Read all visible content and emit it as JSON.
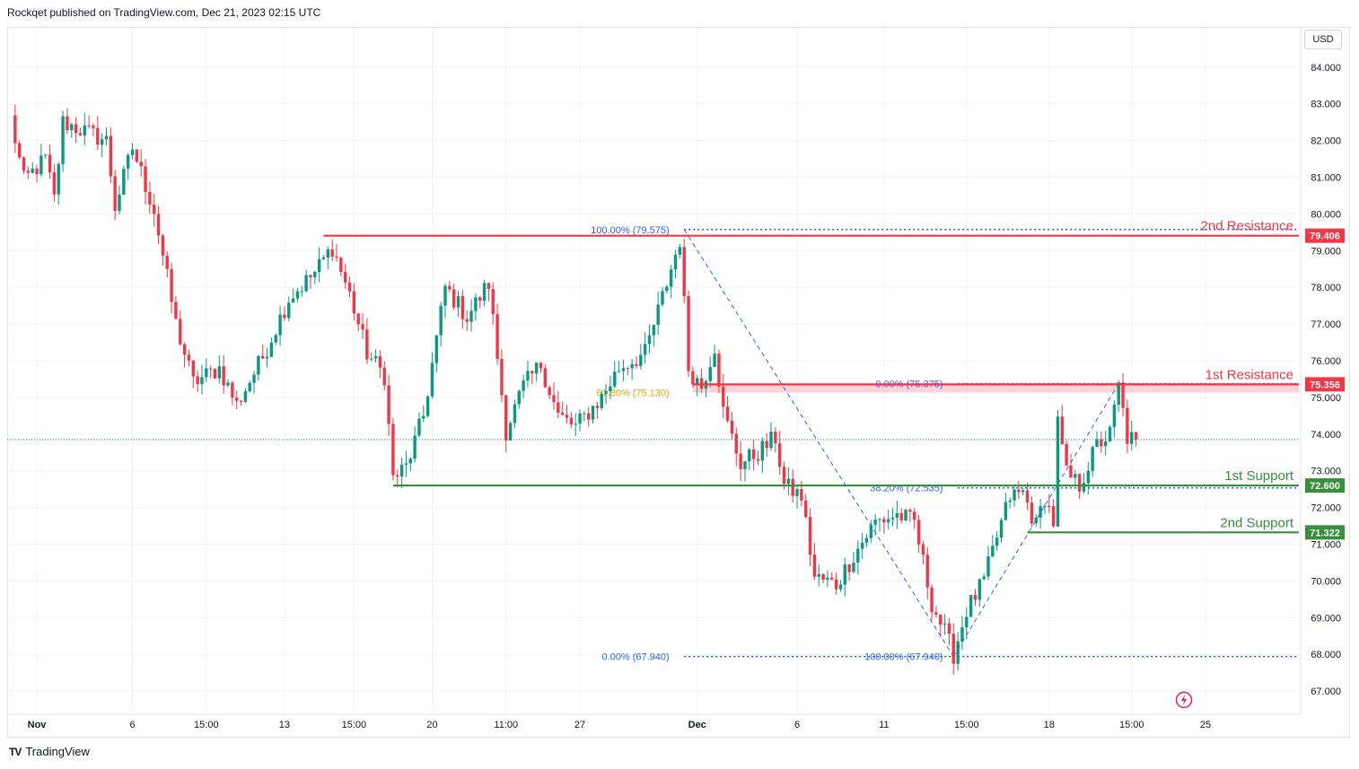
{
  "header": {
    "text": "Rockqet published on TradingView.com, Dec 21, 2023 02:15 UTC"
  },
  "footer": {
    "brand": "TradingView",
    "logo": "TV"
  },
  "currency": "USD",
  "colors": {
    "up": "#089981",
    "down": "#f23645",
    "resistance": "#f23645",
    "support": "#388e3c",
    "fib": "#2962ff",
    "fib_mid": "#f0a30a",
    "grid": "#f0f3fa"
  },
  "chart_data": {
    "type": "candlestick",
    "symbol": "",
    "currency": "USD",
    "ylim": [
      66.5,
      85.0
    ],
    "price_ticks": [
      "84.000",
      "83.000",
      "82.000",
      "81.000",
      "80.000",
      "79.000",
      "78.000",
      "77.000",
      "76.000",
      "75.000",
      "74.000",
      "73.000",
      "72.000",
      "71.000",
      "70.000",
      "69.000",
      "68.000",
      "67.000"
    ],
    "price_tick_values": [
      84,
      83,
      82,
      81,
      80,
      79,
      78,
      77,
      76,
      75,
      74,
      73,
      72,
      71,
      70,
      69,
      68,
      67
    ],
    "x_labels": [
      "Nov",
      "6",
      "15:00",
      "13",
      "15:00",
      "20",
      "11:00",
      "27",
      "Dec",
      "6",
      "11",
      "15:00",
      "18",
      "15:00",
      "25"
    ],
    "x_label_bars": [
      6,
      28,
      45,
      63,
      79,
      97,
      114,
      131,
      158,
      181,
      201,
      220,
      239,
      258,
      275
    ],
    "last_price": 73.85,
    "levels": [
      {
        "label": "2nd Resistance",
        "value": "79.406",
        "price": 79.406,
        "kind": "resistance",
        "from_bar": 72
      },
      {
        "label": "1st Resistance",
        "value": "75.356",
        "price": 75.356,
        "kind": "resistance",
        "from_bar": 157
      },
      {
        "label": "1st Support",
        "value": "72.600",
        "price": 72.6,
        "kind": "support",
        "from_bar": 88
      },
      {
        "label": "2nd Support",
        "value": "71.322",
        "price": 71.322,
        "kind": "support",
        "from_bar": 234
      }
    ],
    "resistance_zone": [
      75.13,
      75.356
    ],
    "fib_labels": [
      {
        "text": "100.00% (79.575)",
        "price": 79.575,
        "bar": 152,
        "color": "fib"
      },
      {
        "text": "61.80% (75.130)",
        "price": 75.13,
        "bar": 152,
        "color": "fib_mid"
      },
      {
        "text": "0.00% (75.375)",
        "price": 75.375,
        "bar": 215,
        "color": "fib"
      },
      {
        "text": "38.20% (72.535)",
        "price": 72.535,
        "bar": 215,
        "color": "fib"
      },
      {
        "text": "0.00% (67.940)",
        "price": 67.94,
        "bar": 152,
        "color": "fib"
      },
      {
        "text": "100.00% (67.940)",
        "price": 67.94,
        "bar": 215,
        "color": "fib"
      }
    ],
    "fib_dotted": [
      {
        "price": 79.575,
        "from_bar": 155,
        "to_bar": 282
      },
      {
        "price": 67.94,
        "from_bar": 155,
        "to_bar": 282
      },
      {
        "price": 75.375,
        "from_bar": 218,
        "to_bar": 282
      },
      {
        "price": 72.535,
        "from_bar": 218,
        "to_bar": 282
      }
    ],
    "fib_trends": [
      {
        "from_bar": 155,
        "from_price": 79.575,
        "to_bar": 217,
        "to_price": 67.94
      },
      {
        "from_bar": 217,
        "from_price": 67.94,
        "to_bar": 255,
        "to_price": 75.375
      }
    ],
    "anchors": [
      [
        0,
        82.6
      ],
      [
        3,
        80.9
      ],
      [
        8,
        81.5
      ],
      [
        10,
        80.4
      ],
      [
        12,
        82.5
      ],
      [
        22,
        82.0
      ],
      [
        24,
        80.2
      ],
      [
        28,
        81.8
      ],
      [
        33,
        80.1
      ],
      [
        38,
        77.0
      ],
      [
        42,
        75.4
      ],
      [
        48,
        75.8
      ],
      [
        52,
        74.8
      ],
      [
        58,
        76.1
      ],
      [
        64,
        77.7
      ],
      [
        70,
        78.4
      ],
      [
        74,
        79.1
      ],
      [
        78,
        77.8
      ],
      [
        82,
        76.2
      ],
      [
        86,
        75.6
      ],
      [
        88,
        72.8
      ],
      [
        91,
        73.1
      ],
      [
        95,
        74.5
      ],
      [
        100,
        78.0
      ],
      [
        105,
        77.2
      ],
      [
        110,
        78.1
      ],
      [
        114,
        74.1
      ],
      [
        118,
        75.3
      ],
      [
        122,
        75.9
      ],
      [
        126,
        74.5
      ],
      [
        130,
        74.2
      ],
      [
        136,
        75.0
      ],
      [
        140,
        75.8
      ],
      [
        146,
        76.2
      ],
      [
        152,
        78.5
      ],
      [
        154,
        79.3
      ],
      [
        156,
        75.8
      ],
      [
        159,
        75.3
      ],
      [
        162,
        76.4
      ],
      [
        164,
        74.6
      ],
      [
        168,
        73.2
      ],
      [
        172,
        73.5
      ],
      [
        176,
        73.9
      ],
      [
        178,
        72.6
      ],
      [
        182,
        72.3
      ],
      [
        185,
        70.1
      ],
      [
        190,
        69.9
      ],
      [
        194,
        70.7
      ],
      [
        199,
        71.6
      ],
      [
        204,
        71.8
      ],
      [
        208,
        71.6
      ],
      [
        212,
        69.4
      ],
      [
        215,
        68.6
      ],
      [
        217,
        68.0
      ],
      [
        220,
        69.2
      ],
      [
        224,
        70.0
      ],
      [
        227,
        71.2
      ],
      [
        230,
        72.3
      ],
      [
        233,
        72.4
      ],
      [
        236,
        71.5
      ],
      [
        238,
        72.3
      ],
      [
        240,
        71.6
      ],
      [
        241,
        74.3
      ],
      [
        243,
        72.9
      ],
      [
        246,
        72.6
      ],
      [
        250,
        73.7
      ],
      [
        253,
        74.0
      ],
      [
        255,
        75.3
      ],
      [
        257,
        73.9
      ],
      [
        259,
        73.85
      ]
    ],
    "total_bars": 296
  }
}
